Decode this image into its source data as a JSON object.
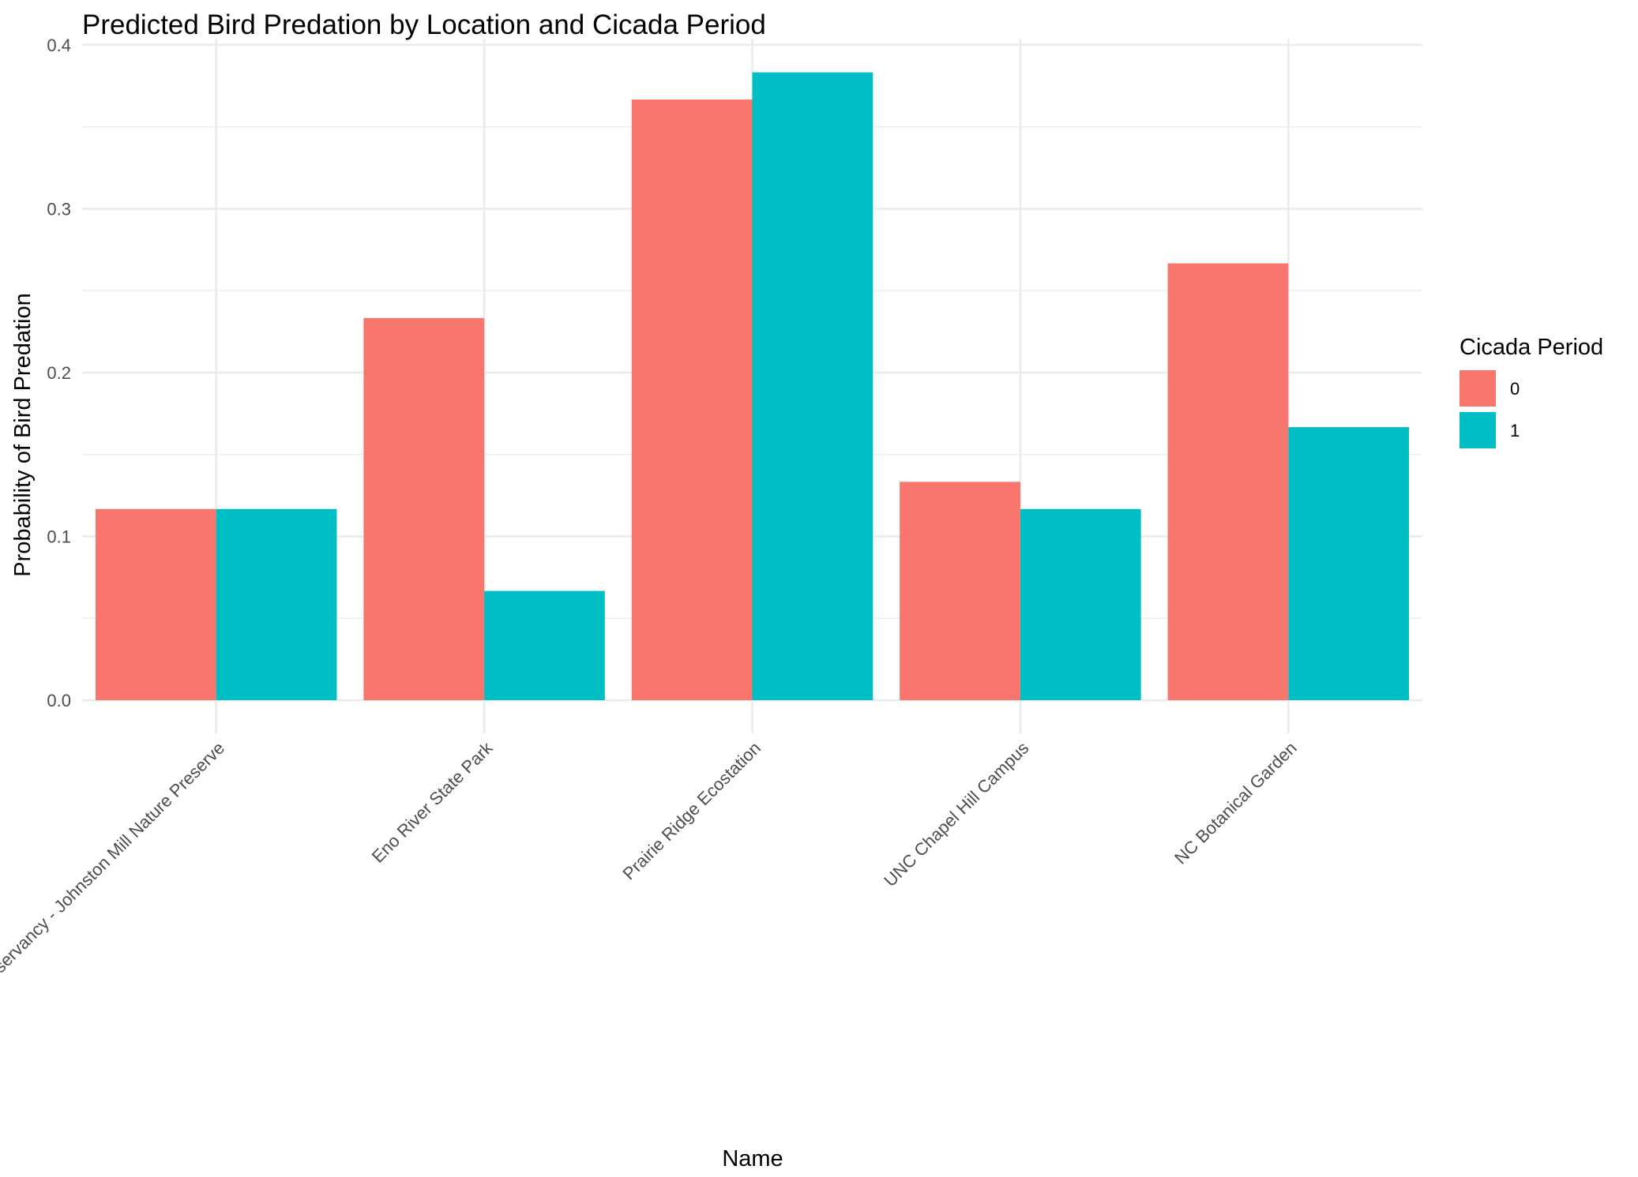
{
  "chart_data": {
    "type": "bar",
    "title": "Predicted Bird Predation by Location and Cicada Period",
    "xlabel": "Name",
    "ylabel": "Probability of Bird Predation",
    "categories": [
      "Triangle Land Conservancy - Johnston Mill Nature Preserve",
      "Eno River State Park",
      "Prairie Ridge Ecostation",
      "UNC Chapel Hill Campus",
      "NC Botanical Garden"
    ],
    "series": [
      {
        "name": "0",
        "color": "#F8766D",
        "values": [
          0.1167,
          0.2333,
          0.3667,
          0.1333,
          0.2667
        ]
      },
      {
        "name": "1",
        "color": "#00BFC4",
        "values": [
          0.1167,
          0.0667,
          0.3833,
          0.1167,
          0.1667
        ]
      }
    ],
    "ylim": [
      0,
      0.4
    ],
    "yticks": [
      0.0,
      0.1,
      0.2,
      0.3,
      0.4
    ],
    "ytick_labels": [
      "0.0",
      "0.1",
      "0.2",
      "0.3",
      "0.4"
    ],
    "legend": {
      "title": "Cicada Period",
      "placement": "right"
    },
    "grid": true
  }
}
